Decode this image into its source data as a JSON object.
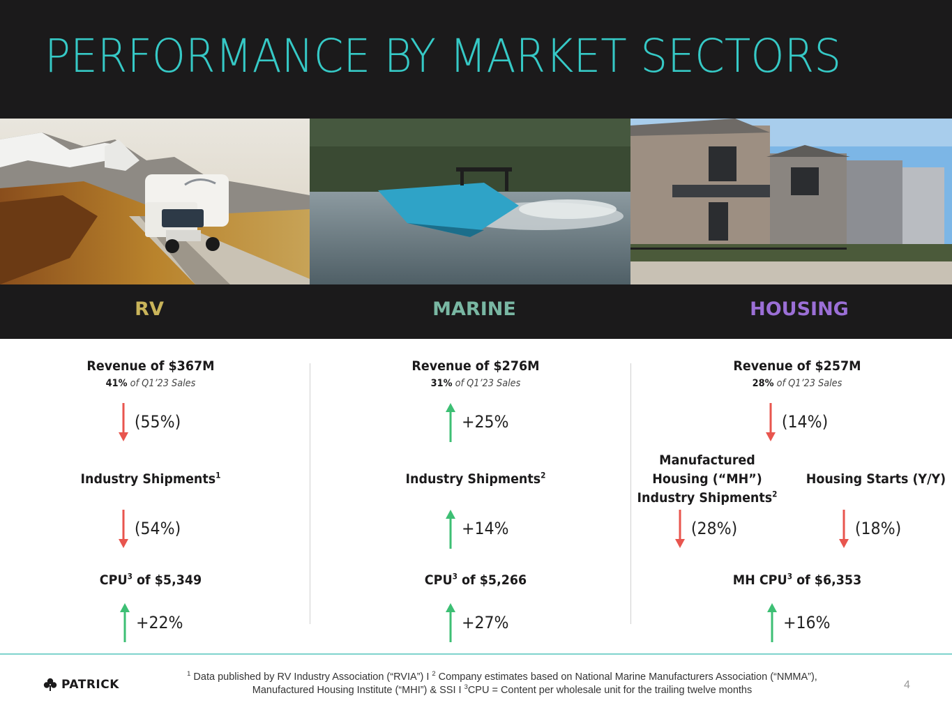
{
  "slide": {
    "title": "PERFORMANCE BY MARKET SECTORS",
    "page_number": "4"
  },
  "colors": {
    "accent": "#36c9c6",
    "down": "#e8554e",
    "up": "#3dbf74",
    "rv": "#c9b45a",
    "marine": "#79b7a3",
    "housing": "#9b6fd6"
  },
  "photos": {
    "rv": "rv-motorhome-mountains-photo",
    "marine": "wakeboat-lake-photo",
    "housing": "townhomes-row-photo"
  },
  "sectors": {
    "rv": {
      "label": "RV",
      "revenue": "Revenue of $367M",
      "share_pct": "41%",
      "share_text": "of Q1’23 Sales",
      "revenue_change": "(55%)",
      "shipments_label": "Industry Shipments",
      "shipments_sup": "1",
      "shipments_change": "(54%)",
      "cpu_pre": "CPU",
      "cpu_sup": "3",
      "cpu_post": " of $5,349",
      "cpu_change": "+22%"
    },
    "marine": {
      "label": "MARINE",
      "revenue": "Revenue of $276M",
      "share_pct": "31%",
      "share_text": "of Q1’23 Sales",
      "revenue_change": "+25%",
      "shipments_label": "Industry Shipments",
      "shipments_sup": "2",
      "shipments_change": "+14%",
      "cpu_pre": "CPU",
      "cpu_sup": "3",
      "cpu_post": " of $5,266",
      "cpu_change": "+27%"
    },
    "housing": {
      "label": "HOUSING",
      "revenue": "Revenue of $257M",
      "share_pct": "28%",
      "share_text": "of Q1’23 Sales",
      "revenue_change": "(14%)",
      "mh_line1": "Manufactured",
      "mh_line2": "Housing (“MH”)",
      "mh_line3": "Industry Shipments",
      "mh_sup": "2",
      "mh_change": "(28%)",
      "starts_label": "Housing Starts (Y/Y)",
      "starts_change": "(18%)",
      "cpu_pre": "MH CPU",
      "cpu_sup": "3",
      "cpu_post": " of $6,353",
      "cpu_change": "+16%"
    }
  },
  "footer": {
    "logo_text": "PATRICK",
    "logo_icon": "shamrock-icon",
    "fn1_sup": "1",
    "fn1_text": " Data published by RV Industry Association (“RVIA”) I ",
    "fn2_sup": "2",
    "fn2_text": " Company estimates based on National Marine Manufacturers Association (“NMMA”),",
    "fn_line2_text": "Manufactured Housing Institute (“MHI”) & SSI I ",
    "fn3_sup": "3",
    "fn3_text": "CPU = Content per wholesale unit for the trailing twelve months"
  }
}
